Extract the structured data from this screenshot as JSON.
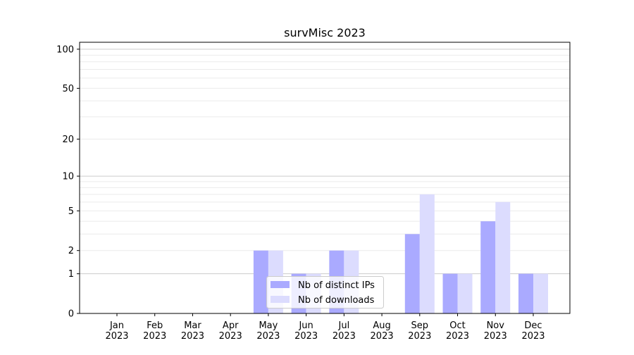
{
  "chart_data": {
    "type": "bar",
    "title": "survMisc 2023",
    "xlabel": "",
    "ylabel": "",
    "yscale": "log(1+y)",
    "ylim": [
      0,
      113
    ],
    "yticks": [
      0,
      1,
      2,
      5,
      10,
      20,
      50,
      100
    ],
    "grid": true,
    "legend_position": "lower-left",
    "categories": [
      "Jan\n2023",
      "Feb\n2023",
      "Mar\n2023",
      "Apr\n2023",
      "May\n2023",
      "Jun\n2023",
      "Jul\n2023",
      "Aug\n2023",
      "Sep\n2023",
      "Oct\n2023",
      "Nov\n2023",
      "Dec\n2023"
    ],
    "series": [
      {
        "name": "Nb of distinct IPs",
        "color": "#aaaaff",
        "values": [
          0,
          0,
          0,
          0,
          2,
          1,
          2,
          0,
          3,
          1,
          4,
          1
        ]
      },
      {
        "name": "Nb of downloads",
        "color": "#dcdcfe",
        "values": [
          0,
          0,
          0,
          0,
          2,
          1,
          2,
          0,
          7,
          1,
          6,
          1
        ]
      }
    ]
  }
}
